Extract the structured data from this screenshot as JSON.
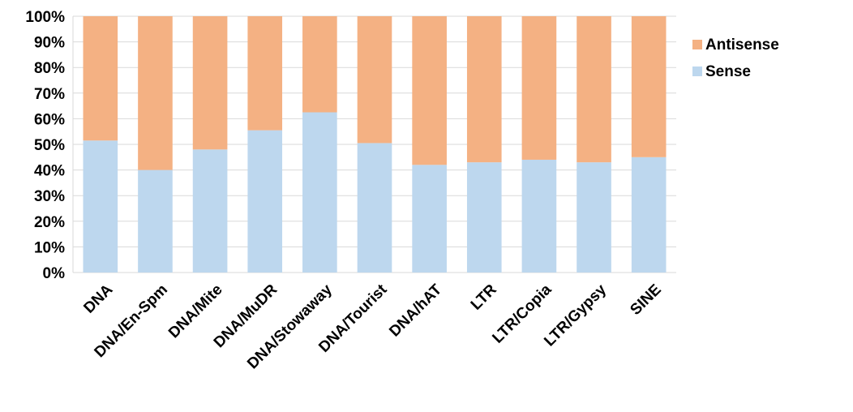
{
  "chart_data": {
    "type": "bar",
    "stacked": "percent",
    "categories": [
      "DNA",
      "DNA/En-Spm",
      "DNA/Mite",
      "DNA/MuDR",
      "DNA/Stowaway",
      "DNA/Tourist",
      "DNA/hAT",
      "LTR",
      "LTR/Copia",
      "LTR/Gypsy",
      "SINE"
    ],
    "series": [
      {
        "name": "Sense",
        "color": "#bdd7ee",
        "values": [
          51.5,
          40,
          48,
          55.5,
          62.5,
          50.5,
          42,
          43,
          44,
          43,
          45
        ]
      },
      {
        "name": "Antisense",
        "color": "#f4b183",
        "values": [
          48.5,
          60,
          52,
          44.5,
          37.5,
          49.5,
          58,
          57,
          56,
          57,
          55
        ]
      }
    ],
    "ylim": [
      0,
      100
    ],
    "yticks": [
      "0%",
      "10%",
      "20%",
      "30%",
      "40%",
      "50%",
      "60%",
      "70%",
      "80%",
      "90%",
      "100%"
    ],
    "grid": true,
    "legend": {
      "placement": "right",
      "entries": [
        "Antisense",
        "Sense"
      ]
    },
    "title": "",
    "xlabel": "",
    "ylabel": ""
  }
}
